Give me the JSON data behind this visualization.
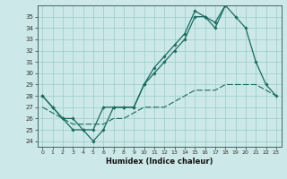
{
  "xlabel": "Humidex (Indice chaleur)",
  "bg_color": "#cce8e8",
  "grid_color": "#99cccc",
  "line_color": "#1a6b5e",
  "xlim": [
    -0.5,
    23.5
  ],
  "ylim": [
    23.5,
    36.0
  ],
  "xticks": [
    0,
    1,
    2,
    3,
    4,
    5,
    6,
    7,
    8,
    9,
    10,
    11,
    12,
    13,
    14,
    15,
    16,
    17,
    18,
    19,
    20,
    21,
    22,
    23
  ],
  "yticks": [
    24,
    25,
    26,
    27,
    28,
    29,
    30,
    31,
    32,
    33,
    34,
    35
  ],
  "curve1_x": [
    0,
    1,
    2,
    3,
    4,
    5,
    6,
    7,
    8,
    9,
    10,
    11,
    12,
    13,
    14,
    15,
    16,
    17,
    18,
    19,
    20,
    21,
    22,
    23
  ],
  "curve1_y": [
    28,
    27,
    26,
    25,
    25,
    24,
    25,
    27,
    27,
    27,
    29,
    30,
    31,
    32,
    33,
    35,
    35,
    34,
    36,
    35,
    34,
    31,
    29,
    28
  ],
  "curve2_x": [
    0,
    1,
    2,
    3,
    4,
    5,
    6,
    7,
    8,
    9,
    10,
    11,
    12,
    13,
    14,
    15,
    16,
    17,
    18
  ],
  "curve2_y": [
    28,
    27,
    26,
    26,
    25,
    25,
    27,
    27,
    27,
    27,
    29,
    30.5,
    31.5,
    32.5,
    33.5,
    35.5,
    35,
    34.5,
    36
  ],
  "curve3_x": [
    0,
    1,
    2,
    3,
    4,
    5,
    6,
    7,
    8,
    9,
    10,
    11,
    12,
    13,
    14,
    15,
    16,
    17,
    18,
    19,
    20,
    21,
    22,
    23
  ],
  "curve3_y": [
    27,
    26.5,
    26,
    25.5,
    25.5,
    25.5,
    25.5,
    26,
    26,
    26.5,
    27,
    27,
    27,
    27.5,
    28,
    28.5,
    28.5,
    28.5,
    29,
    29,
    29,
    29,
    28.5,
    28
  ]
}
